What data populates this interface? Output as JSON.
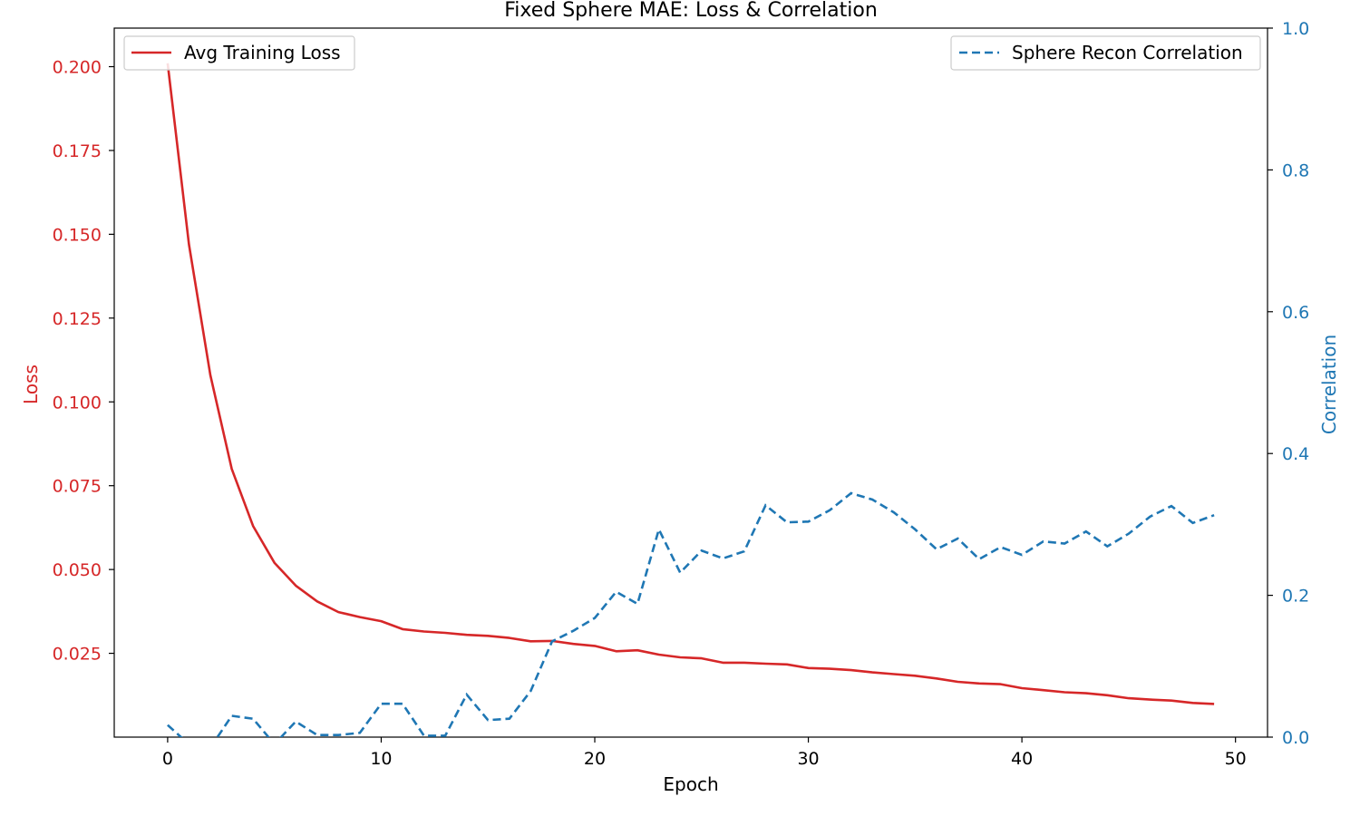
{
  "chart_data": {
    "type": "line",
    "title": "Fixed Sphere MAE: Loss & Correlation",
    "xlabel": "Epoch",
    "ylabel_left": "Loss",
    "ylabel_right": "Correlation",
    "xlim": [
      -2.5,
      51.5
    ],
    "ylim_left": [
      0.0,
      0.2115
    ],
    "ylim_right": [
      0.0,
      1.0
    ],
    "x_ticks": [
      0,
      10,
      20,
      30,
      40,
      50
    ],
    "y_ticks_left": [
      0.025,
      0.05,
      0.075,
      0.1,
      0.125,
      0.15,
      0.175,
      0.2
    ],
    "y_tick_labels_left": [
      "0.025",
      "0.050",
      "0.075",
      "0.100",
      "0.125",
      "0.150",
      "0.175",
      "0.200"
    ],
    "y_ticks_right": [
      0.0,
      0.2,
      0.4,
      0.6,
      0.8,
      1.0
    ],
    "y_tick_labels_right": [
      "0.0",
      "0.2",
      "0.4",
      "0.6",
      "0.8",
      "1.0"
    ],
    "colors": {
      "loss": "#d62728",
      "correlation": "#1f77b4"
    },
    "legend_left_position": "top-left",
    "legend_right_position": "top-right",
    "grid": false,
    "x": [
      0,
      1,
      2,
      3,
      4,
      5,
      6,
      7,
      8,
      9,
      10,
      11,
      12,
      13,
      14,
      15,
      16,
      17,
      18,
      19,
      20,
      21,
      22,
      23,
      24,
      25,
      26,
      27,
      28,
      29,
      30,
      31,
      32,
      33,
      34,
      35,
      36,
      37,
      38,
      39,
      40,
      41,
      42,
      43,
      44,
      45,
      46,
      47,
      48,
      49
    ],
    "series": [
      {
        "name": "Avg Training Loss",
        "axis": "left",
        "style": "solid",
        "values": [
          0.201,
          0.147,
          0.108,
          0.08,
          0.063,
          0.052,
          0.0452,
          0.0405,
          0.0373,
          0.0358,
          0.0346,
          0.0322,
          0.0315,
          0.0311,
          0.0305,
          0.0302,
          0.0296,
          0.0286,
          0.0287,
          0.0278,
          0.0272,
          0.0256,
          0.0259,
          0.0246,
          0.0238,
          0.0235,
          0.0222,
          0.0222,
          0.0219,
          0.0217,
          0.0206,
          0.0204,
          0.02,
          0.0193,
          0.0188,
          0.0183,
          0.0175,
          0.0165,
          0.016,
          0.0158,
          0.0146,
          0.014,
          0.0134,
          0.0131,
          0.0125,
          0.0116,
          0.0112,
          0.0109,
          0.0102,
          0.0099
        ]
      },
      {
        "name": "Sphere Recon Correlation",
        "axis": "right",
        "style": "dashed",
        "values": [
          0.017,
          -0.01,
          -0.015,
          0.03,
          0.026,
          -0.01,
          0.022,
          0.003,
          0.003,
          0.006,
          0.047,
          0.047,
          0.002,
          0.002,
          0.06,
          0.024,
          0.026,
          0.065,
          0.135,
          0.15,
          0.168,
          0.205,
          0.188,
          0.293,
          0.232,
          0.263,
          0.252,
          0.262,
          0.327,
          0.303,
          0.304,
          0.32,
          0.344,
          0.335,
          0.317,
          0.293,
          0.265,
          0.28,
          0.251,
          0.268,
          0.257,
          0.276,
          0.273,
          0.29,
          0.269,
          0.287,
          0.311,
          0.326,
          0.302,
          0.313
        ]
      }
    ]
  }
}
